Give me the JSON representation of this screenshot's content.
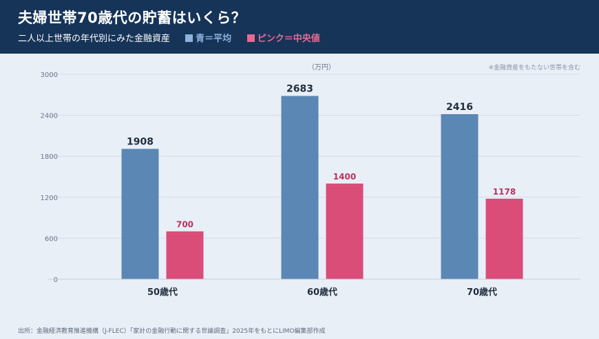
{
  "header": {
    "title": "夫婦世帯70歳代の貯蓄はいくら？",
    "subtitle": "二人以上世帯の年代別にみた金融資産",
    "legend_avg": "青＝平均",
    "legend_med": "ピンク＝中央値"
  },
  "unit": "（万円）",
  "note": "※金融資産をもたない世帯を含む",
  "source": "出所：金融経済教育推進機構（J-FLEC）「家計の金融行動に関する世論調査」2025年をもとにLIMO編集部作成",
  "colors": {
    "header_bg": "#163458",
    "background": "#e9eff7",
    "average": "#5b87b5",
    "median": "#d94d78",
    "median_label": "#b8325f"
  },
  "chart_data": {
    "type": "bar",
    "categories": [
      "50歳代",
      "60歳代",
      "70歳代"
    ],
    "series": [
      {
        "name": "平均",
        "values": [
          1908,
          2683,
          2416
        ]
      },
      {
        "name": "中央値",
        "values": [
          700,
          1400,
          1178
        ]
      }
    ],
    "y_ticks": [
      0,
      600,
      1200,
      1800,
      2400,
      3000
    ],
    "ylim": [
      0,
      3000
    ],
    "grid": true
  }
}
